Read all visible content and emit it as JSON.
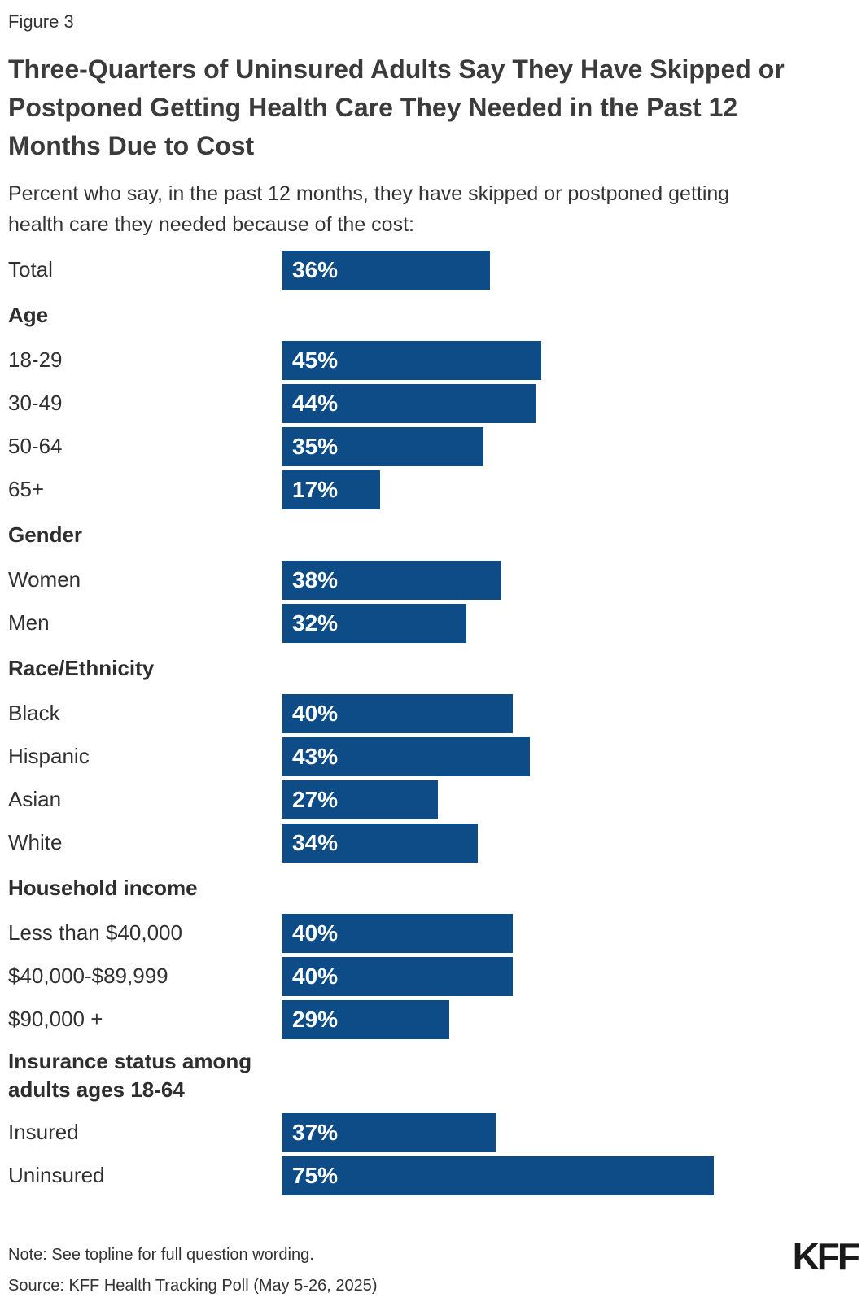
{
  "figure_label": "Figure 3",
  "title_lines": [
    "Three-Quarters of Uninsured Adults Say They Have Skipped or",
    "Postponed Getting Health Care They Needed in the Past 12",
    "Months Due to Cost"
  ],
  "subtitle_lines": [
    "Percent who say, in the past 12 months, they have skipped or postponed getting",
    "health care they needed because of the cost:"
  ],
  "note": "Note: See topline for full question wording.",
  "source": "Source: KFF Health Tracking Poll (May 5-26, 2025)",
  "logo_text": "KFF",
  "colors": {
    "bar_fill": "#0e4c87",
    "bar_text": "#ffffff",
    "title_text": "#3b3b3b",
    "body_text": "#333333"
  },
  "chart_data": {
    "type": "bar",
    "orientation": "horizontal",
    "unit": "%",
    "xlim": [
      0,
      100
    ],
    "grid": false,
    "legend": "none",
    "title": "Percent who say, in the past 12 months, they have skipped or postponed getting health care they needed because of the cost",
    "rows": [
      {
        "kind": "bar",
        "label": "Total",
        "value": 36
      },
      {
        "kind": "header",
        "label": "Age"
      },
      {
        "kind": "bar",
        "label": "18-29",
        "value": 45
      },
      {
        "kind": "bar",
        "label": "30-49",
        "value": 44
      },
      {
        "kind": "bar",
        "label": "50-64",
        "value": 35
      },
      {
        "kind": "bar",
        "label": "65+",
        "value": 17
      },
      {
        "kind": "header",
        "label": "Gender"
      },
      {
        "kind": "bar",
        "label": "Women",
        "value": 38
      },
      {
        "kind": "bar",
        "label": "Men",
        "value": 32
      },
      {
        "kind": "header",
        "label": "Race/Ethnicity"
      },
      {
        "kind": "bar",
        "label": "Black",
        "value": 40
      },
      {
        "kind": "bar",
        "label": "Hispanic",
        "value": 43
      },
      {
        "kind": "bar",
        "label": "Asian",
        "value": 27
      },
      {
        "kind": "bar",
        "label": "White",
        "value": 34
      },
      {
        "kind": "header",
        "label": "Household income"
      },
      {
        "kind": "bar",
        "label": "Less than $40,000",
        "value": 40
      },
      {
        "kind": "bar",
        "label": "$40,000-$89,999",
        "value": 40
      },
      {
        "kind": "bar",
        "label": "$90,000 +",
        "value": 29
      },
      {
        "kind": "header",
        "label": "Insurance status among adults ages 18-64",
        "label_lines": [
          "Insurance status among",
          "adults ages 18-64"
        ]
      },
      {
        "kind": "bar",
        "label": "Insured",
        "value": 37
      },
      {
        "kind": "bar",
        "label": "Uninsured",
        "value": 75
      }
    ]
  }
}
